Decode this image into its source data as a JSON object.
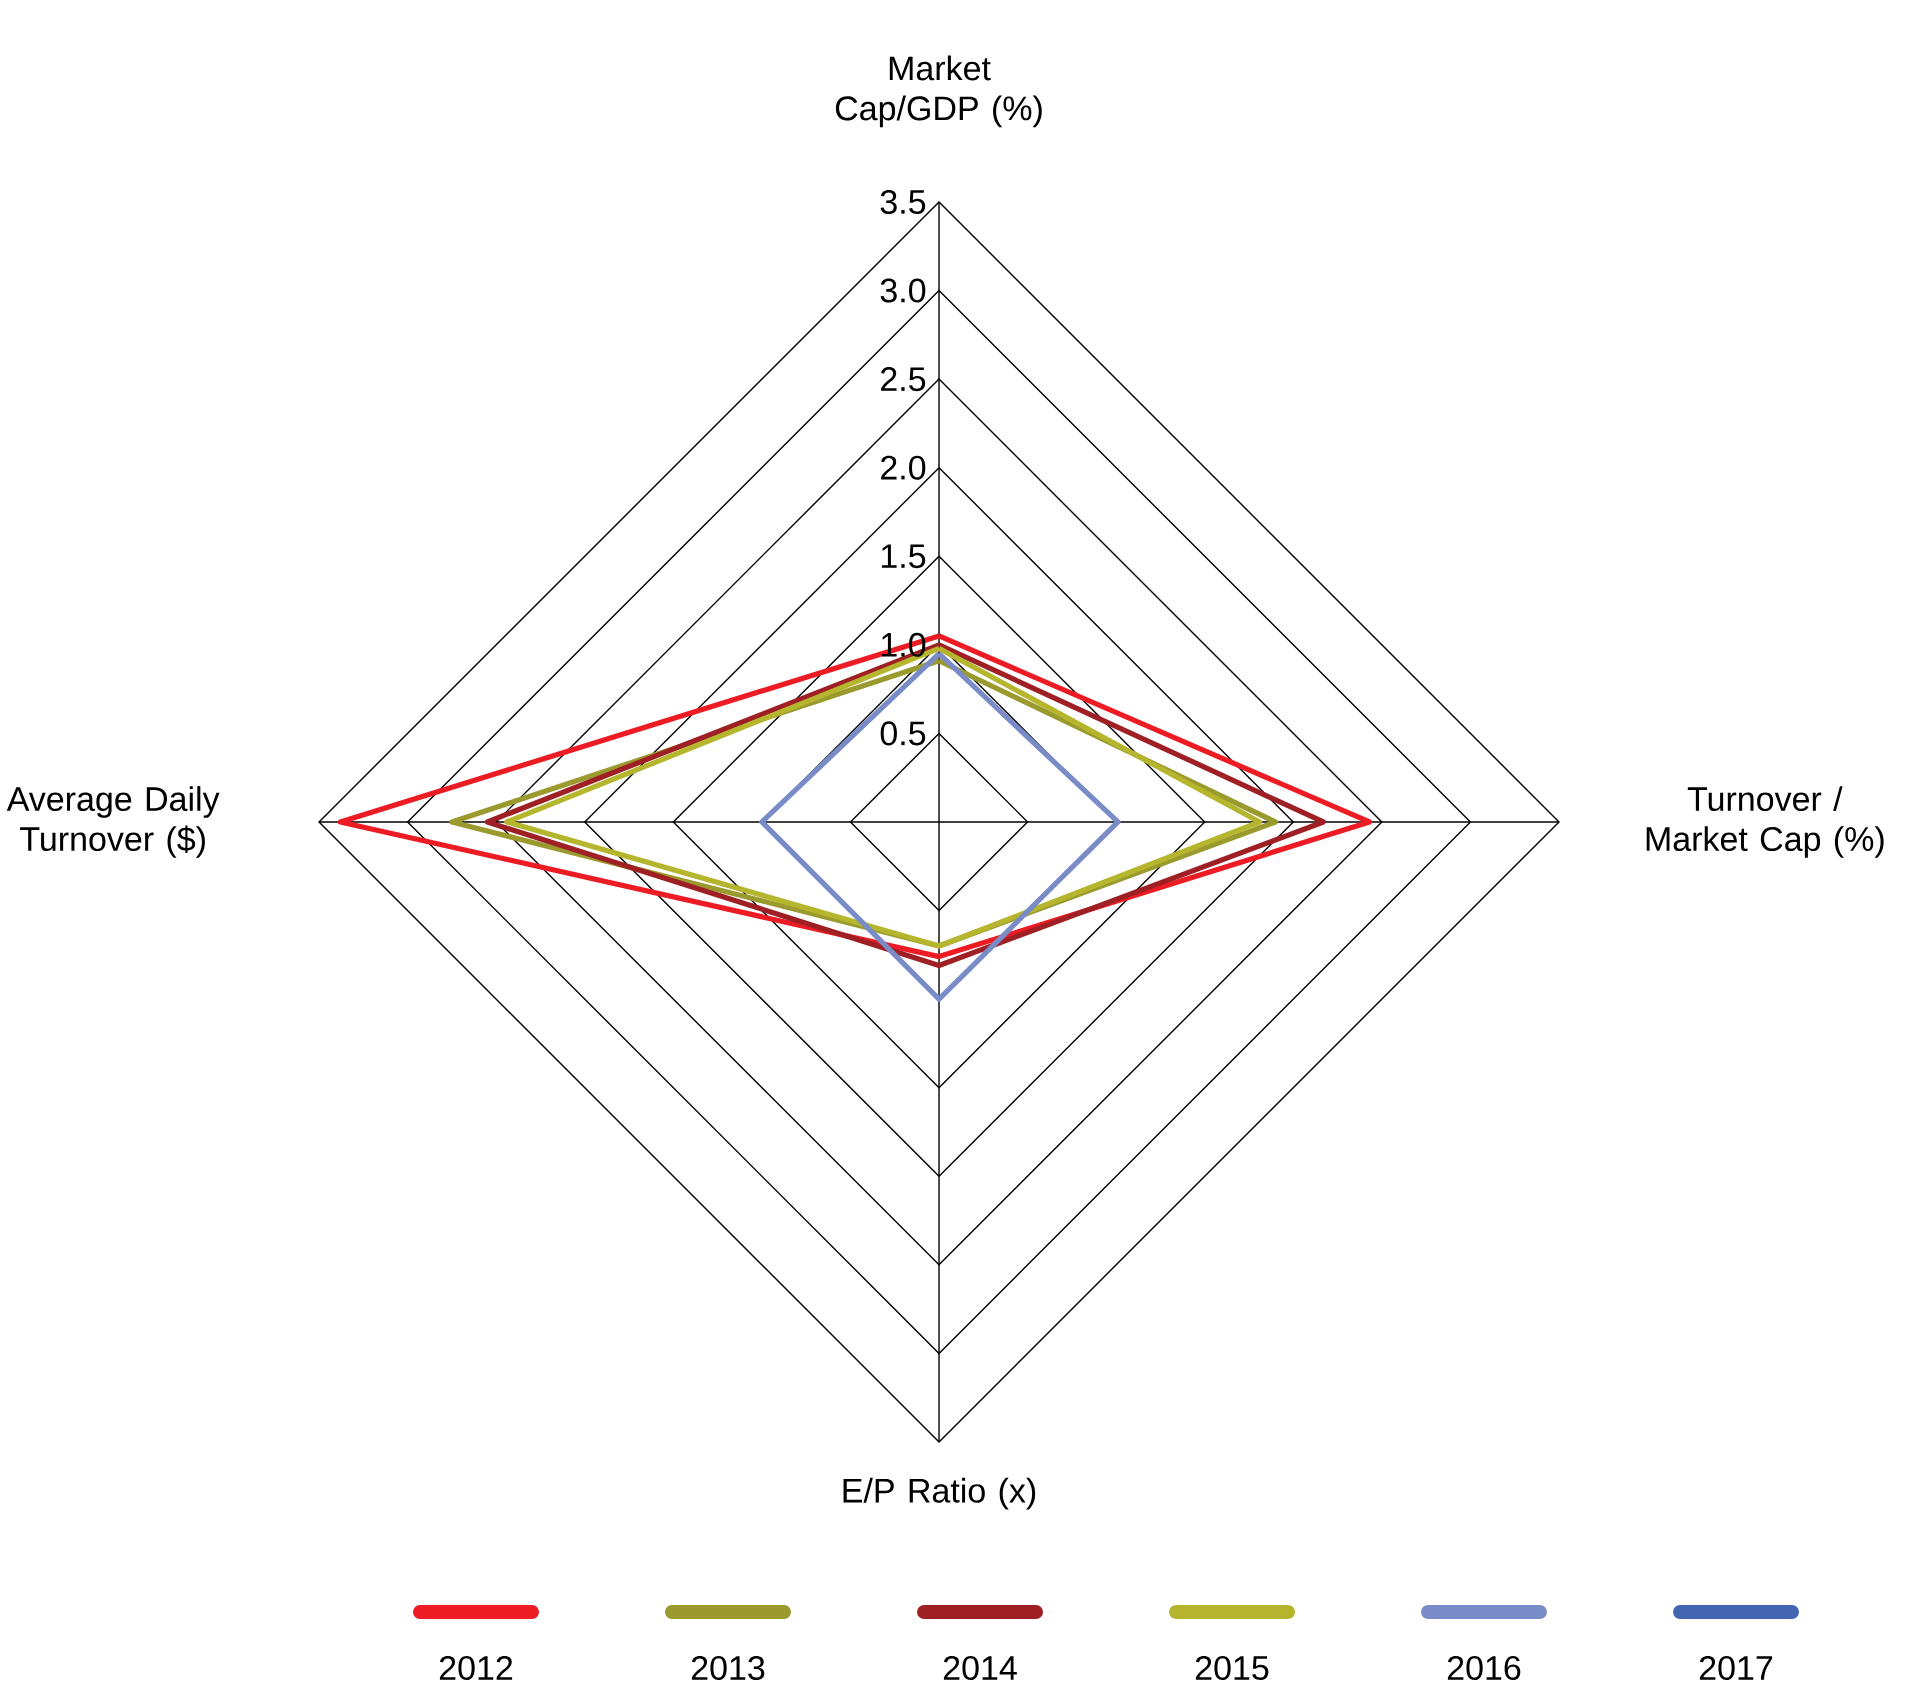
{
  "chart_data": {
    "type": "radar",
    "categories": [
      "Market Cap/GDP (%)",
      "Turnover / Market Cap (%)",
      "E/P Ratio (x)",
      "Average Daily Turnover ($)"
    ],
    "ylim": [
      0,
      3.5
    ],
    "yticks": [
      {
        "value": 0.5,
        "label": "0.5"
      },
      {
        "value": 1,
        "label": "1.0"
      },
      {
        "value": 1.5,
        "label": "1.5"
      },
      {
        "value": 2,
        "label": "2.0"
      },
      {
        "value": 2.5,
        "label": "2.5"
      },
      {
        "value": 3,
        "label": "3.0"
      },
      {
        "value": 3.5,
        "label": "3.5"
      }
    ],
    "grid": true,
    "legend": "bottom",
    "marker": "none",
    "line_style": "solid",
    "series": [
      {
        "name": "2012",
        "color": "#ed1c24",
        "values": [
          1.05,
          2.43,
          0.76,
          3.38
        ]
      },
      {
        "name": "2013",
        "color": "#9a9a2e",
        "values": [
          0.91,
          1.9,
          0.7,
          2.75
        ]
      },
      {
        "name": "2014",
        "color": "#9e1f24",
        "values": [
          1.0,
          2.17,
          0.81,
          2.55
        ]
      },
      {
        "name": "2015",
        "color": "#b5b52e",
        "values": [
          0.98,
          1.81,
          0.7,
          2.44
        ]
      },
      {
        "name": "2016",
        "color": "#7a8cc8",
        "values": [
          0.95,
          1.01,
          1.0,
          1.0
        ]
      },
      {
        "name": "2017",
        "color": "#4466b0",
        "values": [
          null,
          null,
          null,
          null
        ]
      }
    ]
  }
}
